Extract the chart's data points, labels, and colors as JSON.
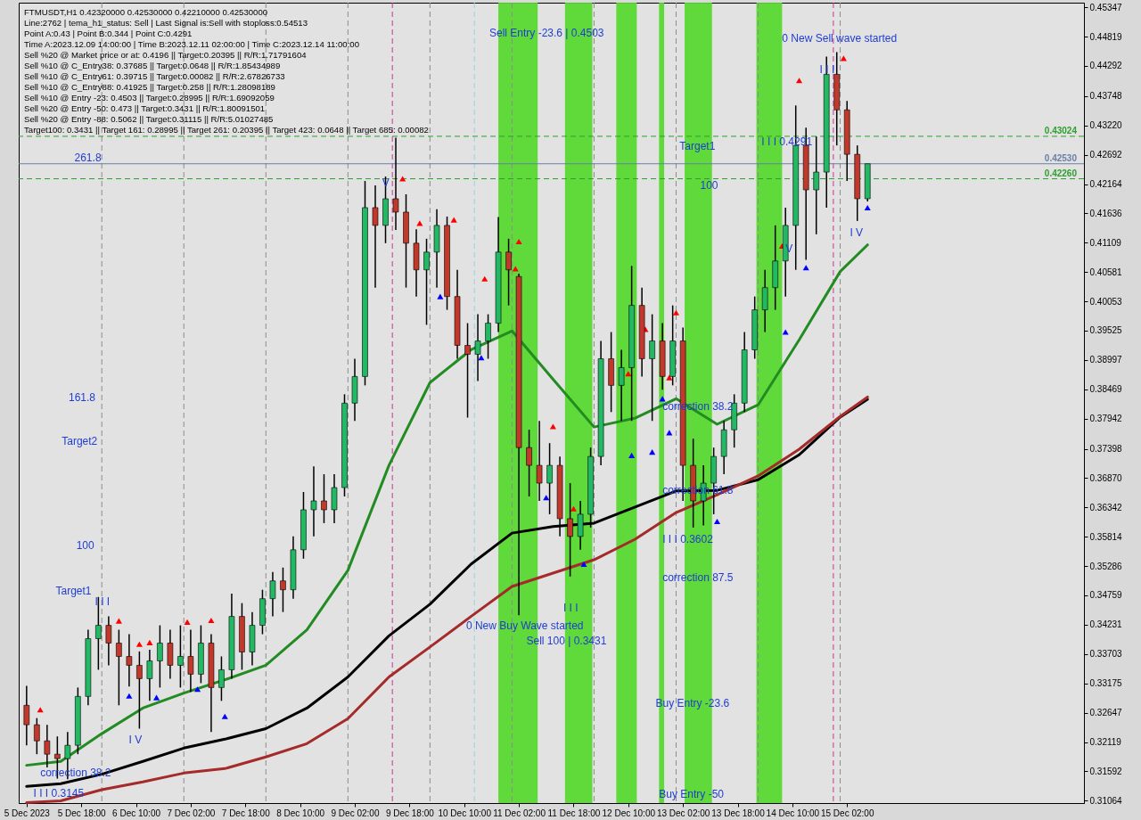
{
  "chart_data": {
    "type": "candlestick",
    "x": [
      "2023-12-05T02:00",
      "2023-12-05T05:00",
      "2023-12-05T08:00",
      "2023-12-05T11:00",
      "2023-12-05T14:00",
      "2023-12-05T17:00",
      "2023-12-05T20:00",
      "2023-12-05T23:00",
      "2023-12-06T02:00",
      "2023-12-06T05:00",
      "2023-12-06T08:00",
      "2023-12-06T11:00",
      "2023-12-06T14:00",
      "2023-12-06T17:00",
      "2023-12-06T20:00",
      "2023-12-06T23:00",
      "2023-12-07T02:00",
      "2023-12-07T05:00",
      "2023-12-07T08:00",
      "2023-12-07T11:00",
      "2023-12-07T14:00",
      "2023-12-07T17:00",
      "2023-12-07T20:00",
      "2023-12-07T23:00",
      "2023-12-08T02:00",
      "2023-12-08T05:00",
      "2023-12-08T08:00",
      "2023-12-08T11:00",
      "2023-12-08T14:00",
      "2023-12-08T17:00",
      "2023-12-08T20:00",
      "2023-12-08T23:00",
      "2023-12-09T02:00",
      "2023-12-09T05:00",
      "2023-12-09T08:00",
      "2023-12-09T11:00",
      "2023-12-09T14:00",
      "2023-12-09T17:00",
      "2023-12-09T20:00",
      "2023-12-09T23:00",
      "2023-12-10T02:00",
      "2023-12-10T05:00",
      "2023-12-10T08:00",
      "2023-12-10T11:00",
      "2023-12-10T14:00",
      "2023-12-10T17:00",
      "2023-12-10T20:00",
      "2023-12-10T23:00",
      "2023-12-11T02:00",
      "2023-12-11T05:00",
      "2023-12-11T08:00",
      "2023-12-11T11:00",
      "2023-12-11T14:00",
      "2023-12-11T17:00",
      "2023-12-11T20:00",
      "2023-12-11T23:00",
      "2023-12-12T02:00",
      "2023-12-12T05:00",
      "2023-12-12T08:00",
      "2023-12-12T11:00",
      "2023-12-12T14:00",
      "2023-12-12T17:00",
      "2023-12-12T20:00",
      "2023-12-12T23:00",
      "2023-12-13T02:00",
      "2023-12-13T05:00",
      "2023-12-13T08:00",
      "2023-12-13T11:00",
      "2023-12-13T14:00",
      "2023-12-13T17:00",
      "2023-12-13T20:00",
      "2023-12-13T23:00",
      "2023-12-14T02:00",
      "2023-12-14T05:00",
      "2023-12-14T08:00",
      "2023-12-14T11:00",
      "2023-12-14T14:00",
      "2023-12-14T17:00",
      "2023-12-14T20:00",
      "2023-12-14T23:00",
      "2023-12-15T02:00",
      "2023-12-15T05:00",
      "2023-12-15T08:00"
    ],
    "ohlc": [
      [
        0.3278,
        0.3313,
        0.3206,
        0.3243
      ],
      [
        0.3243,
        0.3255,
        0.319,
        0.3214
      ],
      [
        0.3214,
        0.3243,
        0.3166,
        0.319
      ],
      [
        0.319,
        0.3222,
        0.3146,
        0.3182
      ],
      [
        0.3182,
        0.323,
        0.3145,
        0.3206
      ],
      [
        0.3206,
        0.331,
        0.319,
        0.3294
      ],
      [
        0.3294,
        0.3414,
        0.3278,
        0.3398
      ],
      [
        0.3398,
        0.3473,
        0.3342,
        0.3422
      ],
      [
        0.3422,
        0.3438,
        0.335,
        0.339
      ],
      [
        0.339,
        0.3414,
        0.3278,
        0.3366
      ],
      [
        0.3366,
        0.3406,
        0.3312,
        0.335
      ],
      [
        0.335,
        0.3375,
        0.3236,
        0.3326
      ],
      [
        0.3326,
        0.3378,
        0.3286,
        0.3358
      ],
      [
        0.3358,
        0.3422,
        0.331,
        0.339
      ],
      [
        0.339,
        0.3414,
        0.3326,
        0.335
      ],
      [
        0.335,
        0.3422,
        0.331,
        0.3366
      ],
      [
        0.3366,
        0.3414,
        0.3302,
        0.3334
      ],
      [
        0.3334,
        0.3422,
        0.3318,
        0.339
      ],
      [
        0.339,
        0.3406,
        0.323,
        0.331
      ],
      [
        0.331,
        0.3366,
        0.3286,
        0.3342
      ],
      [
        0.3342,
        0.3479,
        0.3326,
        0.3438
      ],
      [
        0.3438,
        0.3462,
        0.3342,
        0.3374
      ],
      [
        0.3374,
        0.3446,
        0.335,
        0.3422
      ],
      [
        0.3422,
        0.3486,
        0.3406,
        0.347
      ],
      [
        0.347,
        0.3518,
        0.3438,
        0.3502
      ],
      [
        0.3502,
        0.3526,
        0.3446,
        0.3486
      ],
      [
        0.3486,
        0.3582,
        0.347,
        0.3558
      ],
      [
        0.3558,
        0.3662,
        0.3542,
        0.363
      ],
      [
        0.363,
        0.3708,
        0.3582,
        0.3646
      ],
      [
        0.3646,
        0.3694,
        0.3606,
        0.363
      ],
      [
        0.363,
        0.3694,
        0.3606,
        0.367
      ],
      [
        0.367,
        0.3838,
        0.3654,
        0.3822
      ],
      [
        0.3822,
        0.3902,
        0.379,
        0.387
      ],
      [
        0.387,
        0.4222,
        0.3854,
        0.4174
      ],
      [
        0.4174,
        0.4214,
        0.403,
        0.4142
      ],
      [
        0.4142,
        0.423,
        0.411,
        0.419
      ],
      [
        0.419,
        0.43,
        0.4134,
        0.4166
      ],
      [
        0.4166,
        0.4198,
        0.403,
        0.411
      ],
      [
        0.411,
        0.4135,
        0.4014,
        0.4062
      ],
      [
        0.4062,
        0.4118,
        0.3963,
        0.4094
      ],
      [
        0.4094,
        0.4171,
        0.403,
        0.4142
      ],
      [
        0.4142,
        0.4158,
        0.399,
        0.4014
      ],
      [
        0.4014,
        0.4062,
        0.3902,
        0.3926
      ],
      [
        0.3926,
        0.3966,
        0.3796,
        0.391
      ],
      [
        0.391,
        0.3982,
        0.3862,
        0.3934
      ],
      [
        0.3934,
        0.3982,
        0.3902,
        0.3966
      ],
      [
        0.3966,
        0.4157,
        0.395,
        0.4094
      ],
      [
        0.4094,
        0.4118,
        0.3998,
        0.4062
      ],
      [
        0.405,
        0.4055,
        0.344,
        0.3742
      ],
      [
        0.3742,
        0.3774,
        0.3654,
        0.371
      ],
      [
        0.371,
        0.379,
        0.3646,
        0.3678
      ],
      [
        0.3678,
        0.375,
        0.3622,
        0.371
      ],
      [
        0.371,
        0.3726,
        0.3582,
        0.3614
      ],
      [
        0.3614,
        0.3678,
        0.351,
        0.3582
      ],
      [
        0.3582,
        0.3646,
        0.3558,
        0.3622
      ],
      [
        0.3622,
        0.3742,
        0.3598,
        0.3726
      ],
      [
        0.3726,
        0.3934,
        0.371,
        0.3902
      ],
      [
        0.3902,
        0.395,
        0.3806,
        0.3854
      ],
      [
        0.3854,
        0.3918,
        0.379,
        0.3886
      ],
      [
        0.3886,
        0.4069,
        0.379,
        0.3998
      ],
      [
        0.3998,
        0.403,
        0.387,
        0.3902
      ],
      [
        0.3902,
        0.3982,
        0.379,
        0.3934
      ],
      [
        0.3934,
        0.3966,
        0.3846,
        0.387
      ],
      [
        0.387,
        0.3998,
        0.3854,
        0.3934
      ],
      [
        0.3934,
        0.3958,
        0.3646,
        0.371
      ],
      [
        0.371,
        0.3758,
        0.3598,
        0.3646
      ],
      [
        0.3646,
        0.371,
        0.3602,
        0.3678
      ],
      [
        0.3678,
        0.3742,
        0.3622,
        0.3726
      ],
      [
        0.3726,
        0.379,
        0.3694,
        0.3774
      ],
      [
        0.3774,
        0.3838,
        0.3742,
        0.3822
      ],
      [
        0.3822,
        0.395,
        0.3806,
        0.3918
      ],
      [
        0.3918,
        0.4014,
        0.3902,
        0.399
      ],
      [
        0.399,
        0.4062,
        0.395,
        0.403
      ],
      [
        0.403,
        0.4142,
        0.399,
        0.4078
      ],
      [
        0.4078,
        0.4174,
        0.4014,
        0.4142
      ],
      [
        0.4142,
        0.4358,
        0.4062,
        0.4286
      ],
      [
        0.4286,
        0.4318,
        0.408,
        0.4206
      ],
      [
        0.4206,
        0.4302,
        0.4126,
        0.4238
      ],
      [
        0.4238,
        0.4446,
        0.4174,
        0.4414
      ],
      [
        0.4414,
        0.4454,
        0.4286,
        0.435
      ],
      [
        0.435,
        0.4366,
        0.4222,
        0.427
      ],
      [
        0.427,
        0.4286,
        0.415,
        0.419
      ],
      [
        0.419,
        0.4253,
        0.4185,
        0.4253
      ]
    ],
    "series": [
      {
        "type": "line",
        "color": "#228b22",
        "x": [
          "2023-12-05T02:00",
          "2023-12-05T12:00",
          "2023-12-06T00:00",
          "2023-12-06T12:00",
          "2023-12-07T00:00",
          "2023-12-07T12:00",
          "2023-12-08T00:00",
          "2023-12-08T12:00",
          "2023-12-09T00:00",
          "2023-12-09T12:00",
          "2023-12-10T00:00",
          "2023-12-10T12:00",
          "2023-12-11T00:00",
          "2023-12-11T12:00",
          "2023-12-12T00:00",
          "2023-12-12T12:00",
          "2023-12-13T00:00",
          "2023-12-13T12:00",
          "2023-12-14T00:00",
          "2023-12-14T12:00",
          "2023-12-15T00:00",
          "2023-12-15T08:00"
        ],
        "values": [
          0.317,
          0.3177,
          0.3227,
          0.3273,
          0.33,
          0.3324,
          0.335,
          0.3414,
          0.3521,
          0.371,
          0.3859,
          0.3918,
          0.3952,
          0.3865,
          0.3779,
          0.3795,
          0.383,
          0.3784,
          0.3819,
          0.3936,
          0.4059,
          0.4107
        ]
      },
      {
        "type": "line",
        "color": "#000000",
        "x": [
          "2023-12-05T02:00",
          "2023-12-05T12:00",
          "2023-12-06T00:00",
          "2023-12-06T12:00",
          "2023-12-07T00:00",
          "2023-12-07T12:00",
          "2023-12-08T00:00",
          "2023-12-08T12:00",
          "2023-12-09T00:00",
          "2023-12-09T12:00",
          "2023-12-10T00:00",
          "2023-12-10T12:00",
          "2023-12-11T00:00",
          "2023-12-11T12:00",
          "2023-12-12T00:00",
          "2023-12-12T12:00",
          "2023-12-13T00:00",
          "2023-12-13T12:00",
          "2023-12-14T00:00",
          "2023-12-14T12:00",
          "2023-12-15T00:00",
          "2023-12-15T08:00"
        ],
        "values": [
          0.3132,
          0.3137,
          0.3154,
          0.3177,
          0.3201,
          0.3217,
          0.3236,
          0.3273,
          0.3329,
          0.3403,
          0.346,
          0.3532,
          0.3588,
          0.36,
          0.3606,
          0.3635,
          0.3664,
          0.3665,
          0.3684,
          0.3729,
          0.3797,
          0.3829
        ]
      },
      {
        "type": "line",
        "color": "#a52a2a",
        "x": [
          "2023-12-05T02:00",
          "2023-12-05T12:00",
          "2023-12-06T00:00",
          "2023-12-06T12:00",
          "2023-12-07T00:00",
          "2023-12-07T12:00",
          "2023-12-08T00:00",
          "2023-12-08T12:00",
          "2023-12-09T00:00",
          "2023-12-09T12:00",
          "2023-12-10T00:00",
          "2023-12-10T12:00",
          "2023-12-11T00:00",
          "2023-12-11T12:00",
          "2023-12-12T00:00",
          "2023-12-12T12:00",
          "2023-12-13T00:00",
          "2023-12-13T12:00",
          "2023-12-14T00:00",
          "2023-12-14T12:00",
          "2023-12-15T00:00",
          "2023-12-15T08:00"
        ],
        "values": [
          0.3103,
          0.3106,
          0.3126,
          0.314,
          0.3156,
          0.3164,
          0.3185,
          0.3209,
          0.3254,
          0.3329,
          0.3383,
          0.3438,
          0.3492,
          0.3516,
          0.354,
          0.3577,
          0.3625,
          0.3657,
          0.3691,
          0.3739,
          0.3798,
          0.3833
        ]
      },
      {
        "type": "scatter",
        "color": "#ff0000",
        "marker": "triangle",
        "x": [
          "2023-12-05T06:00",
          "2023-12-06T05:00",
          "2023-12-06T11:00",
          "2023-12-06T14:00",
          "2023-12-07T01:00",
          "2023-12-07T08:00",
          "2023-12-09T16:00",
          "2023-12-09T21:00",
          "2023-12-10T07:00",
          "2023-12-10T16:00",
          "2023-12-11T01:00",
          "2023-12-11T02:00",
          "2023-12-11T12:00",
          "2023-12-11T18:00",
          "2023-12-12T10:00",
          "2023-12-12T15:00",
          "2023-12-12T22:00",
          "2023-12-13T00:00",
          "2023-12-14T07:00",
          "2023-12-14T12:00",
          "2023-12-15T01:00"
        ],
        "values": [
          0.327,
          0.343,
          0.3388,
          0.3391,
          0.3428,
          0.3431,
          0.4226,
          0.4146,
          0.4152,
          0.4046,
          0.4064,
          0.4113,
          0.378,
          0.3632,
          0.3875,
          0.3955,
          0.3868,
          0.3985,
          0.4105,
          0.4403,
          0.4443
        ]
      },
      {
        "type": "scatter",
        "color": "#0000ff",
        "marker": "triangle",
        "x": [
          "2023-12-06T08:00",
          "2023-12-06T16:00",
          "2023-12-07T04:00",
          "2023-12-07T12:00",
          "2023-12-10T03:00",
          "2023-12-10T15:00",
          "2023-12-11T10:00",
          "2023-12-11T21:00",
          "2023-12-12T11:00",
          "2023-12-12T17:00",
          "2023-12-12T20:00",
          "2023-12-12T22:00",
          "2023-12-13T12:00",
          "2023-12-14T08:00",
          "2023-12-14T14:00",
          "2023-12-15T08:00"
        ],
        "values": [
          0.3295,
          0.3292,
          0.3307,
          0.3258,
          0.4014,
          0.3904,
          0.3652,
          0.3532,
          0.3728,
          0.3734,
          0.383,
          0.3769,
          0.3609,
          0.395,
          0.4066,
          0.4174
        ]
      }
    ],
    "xlim": [
      "2023-12-05T01:00",
      "2023-12-17T22:00"
    ],
    "xticks": [
      {
        "value": "2023-12-05T02:00",
        "label": "5 Dec 2023"
      },
      {
        "value": "2023-12-05T18:00",
        "label": "5 Dec 18:00"
      },
      {
        "value": "2023-12-06T10:00",
        "label": "6 Dec 10:00"
      },
      {
        "value": "2023-12-07T02:00",
        "label": "7 Dec 02:00"
      },
      {
        "value": "2023-12-07T18:00",
        "label": "7 Dec 18:00"
      },
      {
        "value": "2023-12-08T10:00",
        "label": "8 Dec 10:00"
      },
      {
        "value": "2023-12-09T02:00",
        "label": "9 Dec 02:00"
      },
      {
        "value": "2023-12-09T18:00",
        "label": "9 Dec 18:00"
      },
      {
        "value": "2023-12-10T10:00",
        "label": "10 Dec 10:00"
      },
      {
        "value": "2023-12-11T02:00",
        "label": "11 Dec 02:00"
      },
      {
        "value": "2023-12-11T18:00",
        "label": "11 Dec 18:00"
      },
      {
        "value": "2023-12-12T10:00",
        "label": "12 Dec 10:00"
      },
      {
        "value": "2023-12-13T02:00",
        "label": "13 Dec 02:00"
      },
      {
        "value": "2023-12-13T18:00",
        "label": "13 Dec 18:00"
      },
      {
        "value": "2023-12-14T10:00",
        "label": "14 Dec 10:00"
      },
      {
        "value": "2023-12-15T02:00",
        "label": "15 Dec 02:00"
      }
    ],
    "ylim": [
      0.3102,
      0.4543
    ],
    "yticks": [
      0.45347,
      0.44819,
      0.44292,
      0.43748,
      {
        "value": 0.4322,
        "label": "0.43220"
      },
      0.42692,
      0.42164,
      0.41636,
      0.41109,
      0.40581,
      0.40053,
      0.39525,
      0.38997,
      0.38469,
      0.37942,
      0.37398,
      {
        "value": 0.3687,
        "label": "0.36870"
      },
      0.36342,
      0.35814,
      0.35286,
      0.34759,
      0.34231,
      0.33703,
      0.33175,
      0.32647,
      0.32119,
      0.31592,
      0.31064
    ],
    "ref_lines": [
      {
        "axis": "x",
        "value": "2023-12-06T00:00",
        "color": "#8c8c8c",
        "line_style": "dashed"
      },
      {
        "axis": "x",
        "value": "2023-12-07T00:00",
        "color": "#8c8c8c",
        "line_style": "dashed"
      },
      {
        "axis": "x",
        "value": "2023-12-08T00:00",
        "color": "#8c8c8c",
        "line_style": "dashed"
      },
      {
        "axis": "x",
        "value": "2023-12-09T00:00",
        "color": "#8c8c8c",
        "line_style": "dashed"
      },
      {
        "axis": "x",
        "value": "2023-12-10T00:00",
        "color": "#8c8c8c",
        "line_style": "dashed"
      },
      {
        "axis": "x",
        "value": "2023-12-11T00:00",
        "color": "#8c8c8c",
        "line_style": "dashed"
      },
      {
        "axis": "x",
        "value": "2023-12-12T00:00",
        "color": "#8c8c8c",
        "line_style": "dashed"
      },
      {
        "axis": "x",
        "value": "2023-12-13T00:00",
        "color": "#8c8c8c",
        "line_style": "dashed"
      },
      {
        "axis": "x",
        "value": "2023-12-14T00:00",
        "color": "#8c8c8c",
        "line_style": "dashed"
      },
      {
        "axis": "x",
        "value": "2023-12-15T00:00",
        "color": "#8c8c8c",
        "line_style": "dashed"
      },
      {
        "axis": "x",
        "value": "2023-12-09T13:00",
        "color": "#cc3399",
        "line_style": "dashed"
      },
      {
        "axis": "x",
        "value": "2023-12-10T13:00",
        "color": "#8fd3e6",
        "line_style": "dashed"
      },
      {
        "axis": "x",
        "value": "2023-12-14T22:00",
        "color": "#cc3399",
        "line_style": "dashed"
      },
      {
        "axis": "y",
        "value": 0.43024,
        "label": "0.43024",
        "color": "#2e9e2e",
        "line_style": "dashed"
      },
      {
        "axis": "y",
        "value": 0.4253,
        "label": "0.42530",
        "color": "#6b7fa6",
        "line_style": "solid"
      },
      {
        "axis": "y",
        "value": 0.4226,
        "label": "0.42260",
        "color": "#2e9e2e",
        "line_style": "dashed"
      }
    ],
    "bands": [
      {
        "axis": "x",
        "from": "2023-12-10T20:00",
        "to": "2023-12-11T07:30",
        "color": "#55d82b"
      },
      {
        "axis": "x",
        "from": "2023-12-11T15:30",
        "to": "2023-12-11T23:30",
        "color": "#55d82b"
      },
      {
        "axis": "x",
        "from": "2023-12-12T06:30",
        "to": "2023-12-12T12:30",
        "color": "#55d82b"
      },
      {
        "axis": "x",
        "from": "2023-12-12T19:00",
        "to": "2023-12-12T20:30",
        "color": "#55d82b"
      },
      {
        "axis": "x",
        "from": "2023-12-13T02:30",
        "to": "2023-12-13T10:30",
        "color": "#55d82b"
      },
      {
        "axis": "x",
        "from": "2023-12-13T23:30",
        "to": "2023-12-14T07:00",
        "color": "#55d82b"
      }
    ],
    "annotations": [
      "FTMUSDT,H1  0.42320000 0.42530000 0.42210000 0.42530000",
      "Line:2762 | tema_h1_status: Sell | Last Signal is:Sell with stoploss:0.54513",
      "Point A:0.43 | Point B:0.344 | Point C:0.4291",
      "Time A:2023.12.09 14:00:00 | Time B:2023.12.11 02:00:00 | Time C:2023.12.14 11:00:00",
      "Sell %20 @ Market price or at: 0.4196 || Target:0.20395 || R/R:1.71791604",
      "Sell %10 @ C_Entry38: 0.37685 || Target:0.0648 || R/R:1.85434989",
      "Sell %10 @ C_Entry61: 0.39715 || Target:0.00082 || R/R:2.67826733",
      "Sell %10 @ C_Entry88: 0.41925 || Target:0.258 || R/R:1.28098189",
      "Sell %10 @ Entry -23: 0.4503 || Target:0.28995 || R/R:1.69092059",
      "Sell %20 @ Entry -50: 0.473 || Target:0.3431 || R/R:1.80091501",
      "Sell %20 @ Entry -88: 0.5062 || Target:0.31115 || R/R:5.01027485",
      "Target100: 0.3431 || Target 161: 0.28995 || Target 261: 0.20395 || Target 423: 0.0648 || Target 685: 0.00082",
      "Sell Entry -23.6 | 0.4503",
      "100",
      "161.8",
      "Target2",
      "100",
      "Target1",
      "I V",
      "correction 38.2",
      "0 New Buy Wave started",
      "Sell 100 | 0.3431",
      "I V",
      {
        "text": "0 New Sell wave started",
        "x": "2023-12-14T07:00",
        "y": 0.4472
      },
      {
        "text": "Target1",
        "x": "2023-12-13T01:00",
        "y": 0.4279
      },
      {
        "text": "261.8",
        "x": "2023-12-05T16:00",
        "y": 0.4258
      },
      {
        "text": "I I I",
        "x": "2023-12-05T22:00",
        "y": 0.3459
      },
      {
        "text": "V",
        "x": "2023-12-09T10:00",
        "y": 0.4213
      },
      {
        "text": "I I I 0.3145",
        "x": "2023-12-05T04:00",
        "y": 0.3113
      },
      {
        "text": "I I I",
        "x": "2023-12-11T15:00",
        "y": 0.3447
      },
      {
        "text": "correction 38.2",
        "x": "2023-12-12T20:00",
        "y": 0.3809
      },
      {
        "text": "correction 61.8",
        "x": "2023-12-12T20:00",
        "y": 0.3659
      },
      {
        "text": "I I I 0.3602",
        "x": "2023-12-12T20:00",
        "y": 0.3571
      },
      {
        "text": "correction 87.5",
        "x": "2023-12-12T20:00",
        "y": 0.3502
      },
      {
        "text": "Buy Entry -23.6",
        "x": "2023-12-12T18:00",
        "y": 0.3276
      },
      {
        "text": "Buy Entry -50",
        "x": "2023-12-12T19:00",
        "y": 0.3111
      },
      {
        "text": "I I I 0.4291",
        "x": "2023-12-14T01:00",
        "y": 0.4286
      },
      {
        "text": "I I I",
        "x": "2023-12-14T18:00",
        "y": 0.4416
      },
      {
        "text": "V",
        "x": "2023-12-14T08:00",
        "y": 0.4094
      }
    ]
  }
}
